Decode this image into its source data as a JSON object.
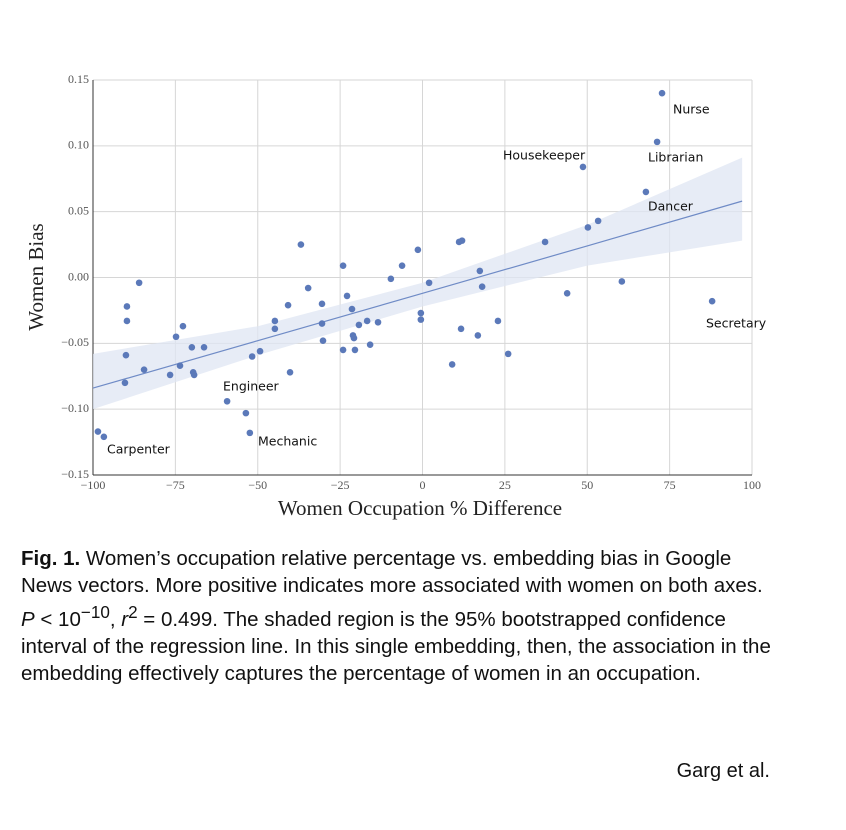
{
  "chart_data": {
    "type": "scatter",
    "xlabel": "Women Occupation % Difference",
    "ylabel": "Women Bias",
    "x": [
      -98.5,
      -96.7,
      -90.3,
      -90.0,
      -89.7,
      -89.7,
      -86.0,
      -84.5,
      -76.6,
      -74.8,
      -73.6,
      -72.7,
      -70.0,
      -69.6,
      -69.3,
      -66.3,
      -59.3,
      -53.6,
      -52.4,
      -51.7,
      -49.3,
      -44.8,
      -44.8,
      -40.8,
      -40.2,
      -36.9,
      -34.7,
      -30.5,
      -30.5,
      -30.2,
      -24.1,
      -24.1,
      -22.9,
      -21.4,
      -21.1,
      -20.8,
      -20.5,
      -19.3,
      -16.8,
      -15.9,
      -13.5,
      -9.6,
      -6.2,
      -1.4,
      -0.5,
      -0.5,
      2.0,
      9.0,
      11.1,
      12.0,
      11.7,
      16.8,
      17.4,
      18.1,
      22.9,
      26.0,
      37.2,
      43.9,
      48.7,
      50.2,
      53.3,
      60.5,
      67.8,
      71.2,
      72.7,
      87.9
    ],
    "values": [
      -0.117,
      -0.121,
      -0.08,
      -0.059,
      -0.022,
      -0.033,
      -0.004,
      -0.07,
      -0.074,
      -0.045,
      -0.067,
      -0.037,
      -0.053,
      -0.072,
      -0.074,
      -0.053,
      -0.094,
      -0.103,
      -0.118,
      -0.06,
      -0.056,
      -0.033,
      -0.039,
      -0.021,
      -0.072,
      0.025,
      -0.008,
      -0.02,
      -0.035,
      -0.048,
      0.009,
      -0.055,
      -0.014,
      -0.024,
      -0.044,
      -0.046,
      -0.055,
      -0.036,
      -0.033,
      -0.051,
      -0.034,
      -0.001,
      0.009,
      0.021,
      -0.027,
      -0.032,
      -0.004,
      -0.066,
      0.027,
      0.028,
      -0.039,
      -0.044,
      0.005,
      -0.007,
      -0.033,
      -0.058,
      0.027,
      -0.012,
      0.084,
      0.038,
      0.043,
      -0.003,
      0.065,
      0.103,
      0.14,
      -0.018
    ],
    "color": "#5b79b9",
    "fit": {
      "x": [
        -100,
        -50,
        0,
        50,
        97
      ],
      "values": [
        -0.084,
        -0.048,
        -0.012,
        0.024,
        0.058
      ],
      "lower": [
        -0.1,
        -0.059,
        -0.022,
        0.009,
        0.028
      ],
      "upper": [
        -0.058,
        -0.037,
        -0.004,
        0.04,
        0.091
      ],
      "color": "#6f8bc6",
      "band_color": "#dfe6f3"
    },
    "annotations": [
      "Nurse",
      "Librarian",
      "Housekeeper",
      "Dancer",
      "Secretary",
      "Engineer",
      "Mechanic",
      "Carpenter"
    ],
    "xlim": [
      -100,
      100
    ],
    "ylim": [
      -0.15,
      0.15
    ],
    "xticks": [
      {
        "value": -100,
        "label": "−100"
      },
      {
        "value": -75,
        "label": "−75"
      },
      {
        "value": -50,
        "label": "−50"
      },
      {
        "value": -25,
        "label": "−25"
      },
      0,
      25,
      50,
      75,
      100
    ],
    "yticks": [
      {
        "value": -0.15,
        "label": "−0.15"
      },
      {
        "value": -0.1,
        "label": "−0.10"
      },
      {
        "value": -0.05,
        "label": "−0.05"
      },
      {
        "value": 0,
        "label": "0.00"
      },
      0.05,
      {
        "value": 0.1,
        "label": "0.10"
      },
      0.15
    ],
    "grid": true
  },
  "caption": [
    "Fig. 1.",
    " Women’s occupation relative percentage vs. embedding bias in Google News vectors. More positive indicates more associated with women on both axes. ",
    "P",
    " < 10",
    "−10",
    ", ",
    "r",
    "2",
    " = 0.499. The shaded region is the 95% bootstrapped confidence interval of the regression line. In this single embedding, then, the association in the embedding effectively captures the percentage of women in an occupation."
  ],
  "attribution": "Garg et al."
}
